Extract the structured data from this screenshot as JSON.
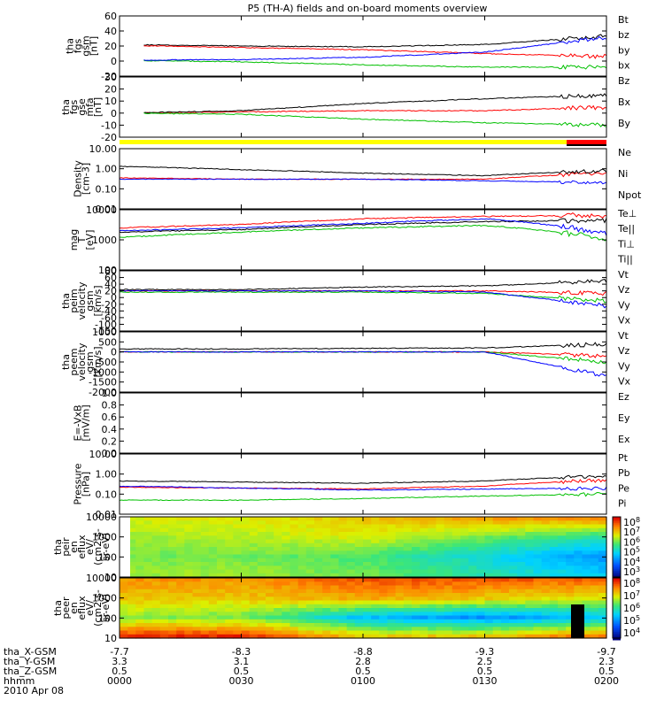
{
  "title": "P5 (TH-A) fields and on-board moments overview",
  "chart_data": [
    {
      "type": "line",
      "panel": "fgs_gsm",
      "ylabel": [
        "tha",
        "fgs",
        "gsm",
        "[nT]"
      ],
      "ylim": [
        -20,
        60
      ],
      "yticks": [
        "60",
        "40",
        "20",
        "0",
        "-20"
      ],
      "legend": [
        {
          "name": "Bt",
          "color": "#000000"
        },
        {
          "name": "bz",
          "color": "#ff0000"
        },
        {
          "name": "by",
          "color": "#00c000"
        },
        {
          "name": "bx",
          "color": "#0000ff"
        }
      ],
      "x": [
        "0000",
        "0030",
        "0100",
        "0130",
        "0200"
      ],
      "series": [
        {
          "name": "Bt",
          "values": [
            22,
            20,
            19,
            22,
            33
          ]
        },
        {
          "name": "bz",
          "values": [
            21,
            18,
            15,
            10,
            6
          ]
        },
        {
          "name": "by",
          "values": [
            1,
            -1,
            -5,
            -8,
            -8
          ]
        },
        {
          "name": "bx",
          "values": [
            1,
            2,
            5,
            12,
            32
          ]
        }
      ]
    },
    {
      "type": "line",
      "panel": "fgs_gse_mfa",
      "ylabel": [
        "tha",
        "fgs",
        "gse",
        "mfa",
        "[nT]"
      ],
      "ylim": [
        -20,
        30
      ],
      "yticks": [
        "30",
        "20",
        "10",
        "0",
        "-10",
        "-20"
      ],
      "legend": [
        {
          "name": "Bz",
          "color": "#ff0000"
        },
        {
          "name": "Bx",
          "color": "#000000"
        },
        {
          "name": "By",
          "color": "#00c000"
        }
      ],
      "x": [
        "0000",
        "0030",
        "0100",
        "0130",
        "0200"
      ],
      "series": [
        {
          "name": "Bz",
          "values": [
            0,
            1,
            2,
            2,
            5
          ]
        },
        {
          "name": "Bx",
          "values": [
            0,
            2,
            8,
            12,
            15
          ]
        },
        {
          "name": "By",
          "values": [
            0,
            -1,
            -5,
            -8,
            -10
          ]
        }
      ]
    },
    {
      "type": "line",
      "panel": "density",
      "ylabel": [
        "Density",
        "[cm-3]"
      ],
      "ylim": [
        0.01,
        10
      ],
      "yticks": [
        "10.00",
        "1.00",
        "0.10",
        "0.01"
      ],
      "legend": [
        {
          "name": "Ne",
          "color": "#ff0000"
        },
        {
          "name": "Ni",
          "color": "#000000"
        },
        {
          "name": "Npot",
          "color": "#0000ff"
        }
      ],
      "x": [
        "0000",
        "0030",
        "0100",
        "0130",
        "0200"
      ],
      "series": [
        {
          "name": "Ne",
          "values": [
            0.35,
            0.3,
            0.3,
            0.3,
            0.6
          ]
        },
        {
          "name": "Ni",
          "values": [
            1.3,
            0.9,
            0.6,
            0.45,
            0.8
          ]
        },
        {
          "name": "Npot",
          "values": [
            0.3,
            0.3,
            0.3,
            0.25,
            0.2
          ]
        }
      ]
    },
    {
      "type": "line",
      "panel": "temperature",
      "ylabel": [
        "mag",
        "T",
        "[eV]"
      ],
      "ylim": [
        100,
        10000
      ],
      "yticks": [
        "10000",
        "1000",
        "100"
      ],
      "legend": [
        {
          "name": "Te⊥",
          "color": "#ff0000"
        },
        {
          "name": "Te||",
          "color": "#000000"
        },
        {
          "name": "Ti⊥",
          "color": "#0000ff"
        },
        {
          "name": "Ti||",
          "color": "#00c000"
        }
      ],
      "x": [
        "0000",
        "0030",
        "0100",
        "0130",
        "0200"
      ],
      "series": [
        {
          "name": "Te⊥",
          "values": [
            2500,
            3200,
            5000,
            6000,
            6500
          ]
        },
        {
          "name": "Te||",
          "values": [
            1800,
            2200,
            3200,
            4000,
            4500
          ]
        },
        {
          "name": "Ti⊥",
          "values": [
            2000,
            2500,
            3500,
            5000,
            1500
          ]
        },
        {
          "name": "Ti||",
          "values": [
            1200,
            1800,
            2500,
            3000,
            1000
          ]
        }
      ]
    },
    {
      "type": "line",
      "panel": "peim_velocity",
      "ylabel": [
        "tha",
        "peim",
        "velocity",
        "gsm",
        "[km/s]"
      ],
      "ylim": [
        -160,
        80
      ],
      "yticks": [
        "80",
        "60",
        "40",
        "20",
        "0",
        "-20",
        "-40",
        "-60",
        "-100",
        "-150"
      ],
      "legend": [
        {
          "name": "Vt",
          "color": "#000000"
        },
        {
          "name": "Vz",
          "color": "#ff0000"
        },
        {
          "name": "Vy",
          "color": "#00c000"
        },
        {
          "name": "Vx",
          "color": "#0000ff"
        }
      ],
      "x": [
        "0000",
        "0030",
        "0100",
        "0130",
        "0200"
      ],
      "series": [
        {
          "name": "Vt",
          "values": [
            5,
            5,
            15,
            20,
            40
          ]
        },
        {
          "name": "Vz",
          "values": [
            0,
            0,
            0,
            0,
            -10
          ]
        },
        {
          "name": "Vy",
          "values": [
            -5,
            -5,
            -5,
            -10,
            -40
          ]
        },
        {
          "name": "Vx",
          "values": [
            0,
            0,
            0,
            -5,
            -60
          ]
        }
      ]
    },
    {
      "type": "line",
      "panel": "peem_velocity",
      "ylabel": [
        "tha",
        "peem",
        "velocity",
        "gsm",
        "[km/s]"
      ],
      "ylim": [
        -2000,
        1000
      ],
      "yticks": [
        "1000",
        "500",
        "0",
        "-500",
        "-1000",
        "-1500",
        "-2000"
      ],
      "legend": [
        {
          "name": "Vt",
          "color": "#000000"
        },
        {
          "name": "Vz",
          "color": "#ff0000"
        },
        {
          "name": "Vy",
          "color": "#00c000"
        },
        {
          "name": "Vx",
          "color": "#0000ff"
        }
      ],
      "x": [
        "0000",
        "0030",
        "0100",
        "0130",
        "0200"
      ],
      "series": [
        {
          "name": "Vt",
          "values": [
            150,
            150,
            180,
            200,
            400
          ]
        },
        {
          "name": "Vz",
          "values": [
            0,
            0,
            0,
            0,
            -200
          ]
        },
        {
          "name": "Vy",
          "values": [
            0,
            0,
            0,
            0,
            -500
          ]
        },
        {
          "name": "Vx",
          "values": [
            0,
            0,
            0,
            0,
            -1200
          ]
        }
      ]
    },
    {
      "type": "line",
      "panel": "e_vxb",
      "ylabel": [
        "E=-VxB",
        "[mV/m]"
      ],
      "ylim": [
        0,
        1
      ],
      "yticks": [
        "1.0",
        "0.8",
        "0.6",
        "0.4",
        "0.2",
        "0.0"
      ],
      "legend": [
        {
          "name": "Ez",
          "color": "#ff0000"
        },
        {
          "name": "Ey",
          "color": "#00c000"
        },
        {
          "name": "Ex",
          "color": "#0000ff"
        }
      ],
      "x": [
        "0000",
        "0030",
        "0100",
        "0130",
        "0200"
      ],
      "series": []
    },
    {
      "type": "line",
      "panel": "pressure",
      "ylabel": [
        "Pressure",
        "[nPa]"
      ],
      "ylim": [
        0.01,
        10
      ],
      "yticks": [
        "10.00",
        "1.00",
        "0.10",
        "0.01"
      ],
      "legend": [
        {
          "name": "Pt",
          "color": "#000000"
        },
        {
          "name": "Pb",
          "color": "#ff0000"
        },
        {
          "name": "Pe",
          "color": "#00c000"
        },
        {
          "name": "Pi",
          "color": "#0000ff"
        }
      ],
      "x": [
        "0000",
        "0030",
        "0100",
        "0130",
        "0200"
      ],
      "series": [
        {
          "name": "Pt",
          "values": [
            0.45,
            0.4,
            0.35,
            0.45,
            0.8
          ]
        },
        {
          "name": "Pb",
          "values": [
            0.22,
            0.2,
            0.18,
            0.25,
            0.5
          ]
        },
        {
          "name": "Pe",
          "values": [
            0.05,
            0.05,
            0.06,
            0.08,
            0.1
          ]
        },
        {
          "name": "Pi",
          "values": [
            0.25,
            0.2,
            0.16,
            0.18,
            0.2
          ]
        }
      ]
    },
    {
      "type": "heatmap",
      "panel": "peir_en_eflux",
      "ylabel": [
        "tha",
        "peir",
        "en",
        "eflux",
        "eV/",
        "(cm2-s-",
        "sr-eV)"
      ],
      "yticks": [
        "10000",
        "1000",
        "100",
        "10"
      ],
      "colorbar_ticks": [
        "10^8",
        "10^7",
        "10^6",
        "10^5",
        "10^4",
        "10^3"
      ],
      "colorbar_range": [
        1000,
        100000000
      ],
      "energy_bands": [
        "10000",
        "1000",
        "100",
        "10"
      ],
      "times": [
        "0000",
        "0030",
        "0100",
        "0130",
        "0200"
      ],
      "values": [
        [
          6.5,
          6.5,
          6.8,
          7.0,
          7.2
        ],
        [
          6.2,
          6.3,
          6.5,
          6.0,
          5.5
        ],
        [
          6.0,
          6.0,
          5.8,
          5.2,
          4.5
        ],
        [
          6.2,
          6.2,
          6.0,
          5.5,
          5.0
        ]
      ]
    },
    {
      "type": "heatmap",
      "panel": "peer_en_eflux",
      "ylabel": [
        "tha",
        "peer",
        "en",
        "eflux",
        "eV/",
        "(cm2-s-",
        "sr-eV)"
      ],
      "yticks": [
        "10000",
        "1000",
        "100",
        "10"
      ],
      "colorbar_ticks": [
        "10^8",
        "10^7",
        "10^6",
        "10^5",
        "10^4"
      ],
      "colorbar_range": [
        10000,
        100000000
      ],
      "energy_bands": [
        "10000",
        "1000",
        "100",
        "10"
      ],
      "times": [
        "0000",
        "0030",
        "0100",
        "0130",
        "0200"
      ],
      "values": [
        [
          7.3,
          7.3,
          7.6,
          7.6,
          7.5
        ],
        [
          7.0,
          7.0,
          7.2,
          7.0,
          6.8
        ],
        [
          6.5,
          6.4,
          5.5,
          5.2,
          5.5
        ],
        [
          7.8,
          7.8,
          7.0,
          7.0,
          7.5
        ]
      ]
    }
  ],
  "footer": {
    "rows": [
      {
        "label": "tha_X-GSM",
        "values": [
          "-7.7",
          "-8.3",
          "-8.8",
          "-9.3",
          "-9.7"
        ]
      },
      {
        "label": "tha_Y-GSM",
        "values": [
          "3.3",
          "3.1",
          "2.8",
          "2.5",
          "2.3"
        ]
      },
      {
        "label": "tha_Z-GSM",
        "values": [
          "0.5",
          "0.5",
          "0.5",
          "0.5",
          "0.5"
        ]
      },
      {
        "label": "hhmm",
        "values": [
          "0000",
          "0030",
          "0100",
          "0130",
          "0200"
        ]
      }
    ],
    "date": "2010 Apr 08"
  }
}
